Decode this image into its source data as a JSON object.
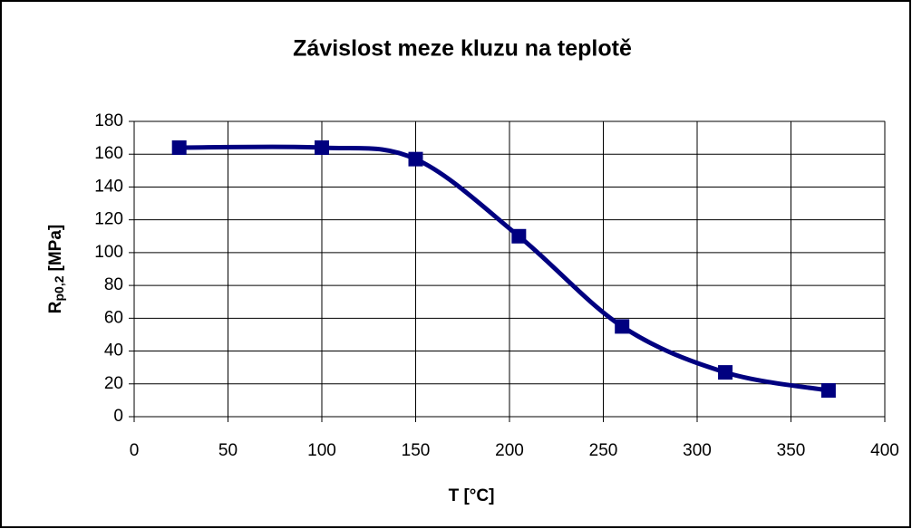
{
  "chart_data": {
    "type": "line",
    "title": "Závislost meze kluzu na teplotě",
    "x_label": "T [°C]",
    "y_label": {
      "main": "R",
      "sub": "p0,2",
      "unit": "[MPa]"
    },
    "series": [
      {
        "color": "#000080",
        "smooth": true,
        "marker": "square",
        "x": [
          24,
          100,
          150,
          205,
          260,
          315,
          370
        ],
        "values": [
          164,
          164,
          157,
          110,
          55,
          27,
          16
        ]
      }
    ],
    "xlim": [
      0,
      400
    ],
    "xticks": [
      0,
      50,
      100,
      150,
      200,
      250,
      300,
      350,
      400
    ],
    "ylim": [
      0,
      180
    ],
    "yticks": [
      0,
      20,
      40,
      60,
      80,
      100,
      120,
      140,
      160,
      180
    ],
    "grid": true
  }
}
